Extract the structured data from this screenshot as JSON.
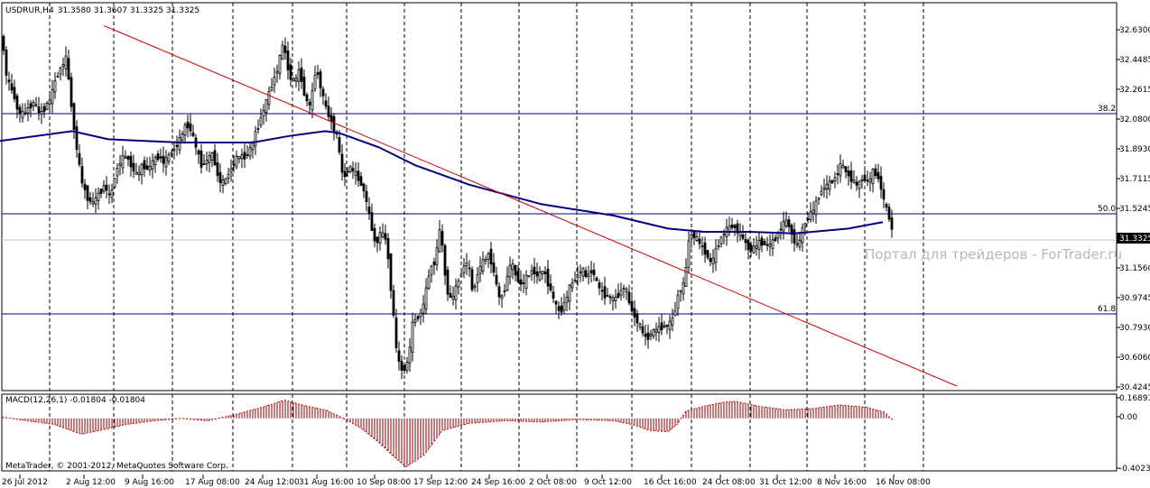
{
  "chart_data": [
    {
      "type": "candlestick",
      "title": "USDRUR,H4",
      "ohlc_header": "31.3580 31.3607 31.3325 31.3325",
      "symbol": "USDRUR",
      "timeframe": "H4",
      "y_ticks": [
        "32.6300",
        "32.4485",
        "32.2615",
        "32.0800",
        "31.8930",
        "31.7115",
        "31.5245",
        "31.3325",
        "31.1560",
        "30.9745",
        "30.7930",
        "30.6060",
        "30.4245"
      ],
      "ylim": [
        30.4245,
        32.63
      ],
      "x_tick_labels": [
        "26 Jul 2012",
        "2 Aug 12:00",
        "9 Aug 16:00",
        "17 Aug 08:00",
        "24 Aug 12:00",
        "31 Aug 16:00",
        "10 Sep 08:00",
        "17 Sep 12:00",
        "24 Sep 16:00",
        "2 Oct 08:00",
        "9 Oct 12:00",
        "16 Oct 16:00",
        "24 Oct 08:00",
        "31 Oct 12:00",
        "8 Nov 16:00",
        "16 Nov 08:00"
      ],
      "current_price": "31.3325",
      "fibonacci_levels": [
        {
          "label": "38.2",
          "value": 32.1
        },
        {
          "label": "50.0",
          "value": 31.49
        },
        {
          "label": "61.8",
          "value": 30.88
        }
      ],
      "moving_average_path": [
        [
          0,
          31.94
        ],
        [
          80,
          32.0
        ],
        [
          120,
          31.95
        ],
        [
          200,
          31.93
        ],
        [
          280,
          31.93
        ],
        [
          320,
          31.97
        ],
        [
          360,
          32.0
        ],
        [
          375,
          31.99
        ],
        [
          420,
          31.9
        ],
        [
          460,
          31.79
        ],
        [
          520,
          31.67
        ],
        [
          600,
          31.55
        ],
        [
          680,
          31.48
        ],
        [
          740,
          31.4
        ],
        [
          780,
          31.38
        ],
        [
          830,
          31.38
        ],
        [
          880,
          31.37
        ],
        [
          940,
          31.4
        ],
        [
          978,
          31.44
        ]
      ],
      "trendline": {
        "x1": 115,
        "y1": 32.65,
        "x2": 1060,
        "y2": 30.43
      },
      "candle_path": [
        [
          2,
          32.59
        ],
        [
          8,
          32.3
        ],
        [
          14,
          32.25
        ],
        [
          20,
          32.12
        ],
        [
          26,
          32.1
        ],
        [
          32,
          32.15
        ],
        [
          38,
          32.18
        ],
        [
          44,
          32.1
        ],
        [
          50,
          32.15
        ],
        [
          56,
          32.2
        ],
        [
          62,
          32.33
        ],
        [
          68,
          32.4
        ],
        [
          74,
          32.45
        ],
        [
          78,
          32.2
        ],
        [
          84,
          31.93
        ],
        [
          90,
          31.7
        ],
        [
          96,
          31.6
        ],
        [
          102,
          31.55
        ],
        [
          110,
          31.62
        ],
        [
          116,
          31.67
        ],
        [
          122,
          31.58
        ],
        [
          128,
          31.75
        ],
        [
          134,
          31.82
        ],
        [
          140,
          31.85
        ],
        [
          146,
          31.78
        ],
        [
          152,
          31.72
        ],
        [
          158,
          31.8
        ],
        [
          164,
          31.76
        ],
        [
          170,
          31.82
        ],
        [
          176,
          31.85
        ],
        [
          182,
          31.8
        ],
        [
          188,
          31.86
        ],
        [
          194,
          31.9
        ],
        [
          200,
          31.95
        ],
        [
          206,
          32.05
        ],
        [
          212,
          32.0
        ],
        [
          218,
          31.88
        ],
        [
          224,
          31.78
        ],
        [
          230,
          31.83
        ],
        [
          236,
          31.86
        ],
        [
          242,
          31.7
        ],
        [
          248,
          31.68
        ],
        [
          254,
          31.75
        ],
        [
          260,
          31.82
        ],
        [
          266,
          31.85
        ],
        [
          272,
          31.84
        ],
        [
          278,
          31.9
        ],
        [
          284,
          32.0
        ],
        [
          290,
          32.1
        ],
        [
          296,
          32.2
        ],
        [
          302,
          32.3
        ],
        [
          308,
          32.4
        ],
        [
          314,
          32.55
        ],
        [
          320,
          32.35
        ],
        [
          326,
          32.3
        ],
        [
          332,
          32.38
        ],
        [
          338,
          32.2
        ],
        [
          344,
          32.15
        ],
        [
          350,
          32.4
        ],
        [
          356,
          32.25
        ],
        [
          362,
          32.12
        ],
        [
          368,
          32.05
        ],
        [
          374,
          31.95
        ],
        [
          380,
          31.7
        ],
        [
          386,
          31.78
        ],
        [
          392,
          31.75
        ],
        [
          398,
          31.7
        ],
        [
          404,
          31.62
        ],
        [
          410,
          31.45
        ],
        [
          416,
          31.3
        ],
        [
          422,
          31.38
        ],
        [
          428,
          31.33
        ],
        [
          434,
          30.98
        ],
        [
          440,
          30.6
        ],
        [
          446,
          30.52
        ],
        [
          452,
          30.58
        ],
        [
          458,
          30.85
        ],
        [
          464,
          30.85
        ],
        [
          470,
          30.95
        ],
        [
          476,
          31.15
        ],
        [
          482,
          31.2
        ],
        [
          488,
          31.42
        ],
        [
          494,
          31.05
        ],
        [
          500,
          30.95
        ],
        [
          506,
          31.05
        ],
        [
          512,
          31.15
        ],
        [
          518,
          31.2
        ],
        [
          524,
          31.0
        ],
        [
          530,
          31.15
        ],
        [
          536,
          31.2
        ],
        [
          542,
          31.25
        ],
        [
          548,
          31.1
        ],
        [
          554,
          30.95
        ],
        [
          560,
          31.05
        ],
        [
          566,
          31.2
        ],
        [
          572,
          31.1
        ],
        [
          578,
          31.05
        ],
        [
          584,
          31.1
        ],
        [
          590,
          31.15
        ],
        [
          596,
          31.1
        ],
        [
          602,
          31.15
        ],
        [
          608,
          31.05
        ],
        [
          614,
          30.95
        ],
        [
          620,
          30.88
        ],
        [
          626,
          30.95
        ],
        [
          632,
          31.05
        ],
        [
          638,
          31.1
        ],
        [
          644,
          31.15
        ],
        [
          650,
          31.1
        ],
        [
          656,
          31.15
        ],
        [
          662,
          31.05
        ],
        [
          668,
          31.0
        ],
        [
          674,
          30.98
        ],
        [
          680,
          30.96
        ],
        [
          686,
          31.0
        ],
        [
          692,
          31.05
        ],
        [
          698,
          30.92
        ],
        [
          704,
          30.85
        ],
        [
          710,
          30.78
        ],
        [
          716,
          30.72
        ],
        [
          722,
          30.76
        ],
        [
          728,
          30.78
        ],
        [
          734,
          30.8
        ],
        [
          740,
          30.8
        ],
        [
          746,
          30.85
        ],
        [
          752,
          31.02
        ],
        [
          758,
          31.05
        ],
        [
          764,
          31.38
        ],
        [
          770,
          31.35
        ],
        [
          776,
          31.3
        ],
        [
          782,
          31.25
        ],
        [
          788,
          31.18
        ],
        [
          794,
          31.28
        ],
        [
          800,
          31.36
        ],
        [
          806,
          31.4
        ],
        [
          812,
          31.42
        ],
        [
          818,
          31.38
        ],
        [
          824,
          31.33
        ],
        [
          830,
          31.27
        ],
        [
          836,
          31.28
        ],
        [
          842,
          31.32
        ],
        [
          848,
          31.3
        ],
        [
          854,
          31.3
        ],
        [
          860,
          31.35
        ],
        [
          866,
          31.42
        ],
        [
          872,
          31.45
        ],
        [
          878,
          31.35
        ],
        [
          884,
          31.28
        ],
        [
          890,
          31.42
        ],
        [
          896,
          31.48
        ],
        [
          902,
          31.52
        ],
        [
          908,
          31.62
        ],
        [
          914,
          31.66
        ],
        [
          920,
          31.68
        ],
        [
          926,
          31.72
        ],
        [
          932,
          31.8
        ],
        [
          938,
          31.74
        ],
        [
          944,
          31.7
        ],
        [
          950,
          31.66
        ],
        [
          956,
          31.72
        ],
        [
          962,
          31.68
        ],
        [
          968,
          31.76
        ],
        [
          974,
          31.7
        ],
        [
          980,
          31.55
        ],
        [
          986,
          31.45
        ],
        [
          990,
          31.34
        ]
      ],
      "indicator": {
        "name": "MACD(12,26,1) -0.01804 -0.01804",
        "y_ticks": [
          "0.16891",
          "0.00",
          "-0.40234"
        ],
        "ylim": [
          -0.40234,
          0.16891
        ],
        "values_path": [
          [
            2,
            0.01
          ],
          [
            30,
            -0.02
          ],
          [
            60,
            -0.05
          ],
          [
            90,
            -0.13
          ],
          [
            110,
            -0.1
          ],
          [
            140,
            -0.05
          ],
          [
            170,
            -0.02
          ],
          [
            200,
            0.0
          ],
          [
            230,
            -0.02
          ],
          [
            260,
            0.03
          ],
          [
            290,
            0.09
          ],
          [
            315,
            0.15
          ],
          [
            340,
            0.1
          ],
          [
            360,
            0.07
          ],
          [
            375,
            0.02
          ],
          [
            400,
            -0.08
          ],
          [
            420,
            -0.2
          ],
          [
            440,
            -0.34
          ],
          [
            450,
            -0.4
          ],
          [
            470,
            -0.3
          ],
          [
            490,
            -0.1
          ],
          [
            520,
            -0.04
          ],
          [
            560,
            -0.02
          ],
          [
            600,
            -0.03
          ],
          [
            640,
            -0.01
          ],
          [
            680,
            -0.02
          ],
          [
            700,
            -0.05
          ],
          [
            720,
            -0.1
          ],
          [
            740,
            -0.11
          ],
          [
            750,
            -0.05
          ],
          [
            760,
            0.06
          ],
          [
            780,
            0.1
          ],
          [
            800,
            0.13
          ],
          [
            815,
            0.14
          ],
          [
            840,
            0.1
          ],
          [
            870,
            0.07
          ],
          [
            900,
            0.08
          ],
          [
            930,
            0.11
          ],
          [
            960,
            0.09
          ],
          [
            980,
            0.05
          ],
          [
            990,
            -0.02
          ]
        ]
      },
      "watermark": "Портал для трейдеров - ForTrader.ru",
      "copyright": "MetaTrader, © 2001-2012, MetaQuotes Software Corp.",
      "colors": {
        "bull": "#ffffff",
        "bear": "#000000",
        "ma": "#000080",
        "fib": "#000080",
        "trendline": "#cc0000",
        "macd": "#800000",
        "grid": "#000000"
      }
    }
  ]
}
